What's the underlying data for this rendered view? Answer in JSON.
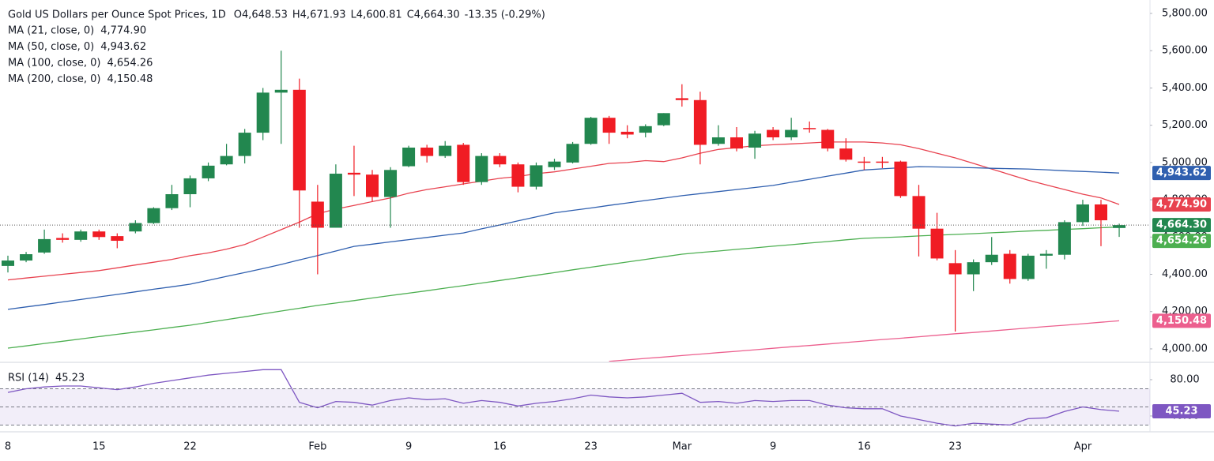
{
  "chart_data": [
    {
      "type": "candlestick",
      "title": "Gold US Dollars per Ounce Spot Prices, 1D",
      "ohlc_labels": [
        "O4,648.53",
        "H4,671.93",
        "L4,600.81",
        "C4,664.30",
        "-13.35 (-0.29%)"
      ],
      "categories": [
        "8",
        null,
        null,
        null,
        null,
        "15",
        null,
        null,
        null,
        null,
        "22",
        null,
        null,
        null,
        null,
        null,
        null,
        "Feb",
        null,
        null,
        null,
        null,
        "9",
        null,
        null,
        null,
        null,
        "16",
        null,
        null,
        null,
        null,
        "23",
        null,
        null,
        null,
        null,
        "Mar",
        null,
        null,
        null,
        null,
        "9",
        null,
        null,
        null,
        null,
        "16",
        null,
        null,
        null,
        null,
        "23",
        null,
        null,
        null,
        null,
        null,
        null,
        "Apr",
        null,
        null
      ],
      "open": [
        4445,
        4474,
        4517,
        4595,
        4585,
        4630,
        4605,
        4630,
        4675,
        4755,
        4830,
        4915,
        4990,
        5035,
        5160,
        5375,
        5390,
        4790,
        4650,
        4945,
        4935,
        4815,
        4980,
        5080,
        5035,
        5095,
        4895,
        5035,
        4990,
        4870,
        4975,
        5000,
        5100,
        5240,
        5165,
        5160,
        5200,
        5345,
        5335,
        5100,
        5135,
        5080,
        5175,
        5135,
        5185,
        5175,
        5075,
        5005,
        5005,
        5005,
        4820,
        4645,
        4460,
        4400,
        4465,
        4510,
        4375,
        4500,
        4505,
        4680,
        4775,
        4648.53
      ],
      "high": [
        4500,
        4520,
        4640,
        4620,
        4640,
        4640,
        4620,
        4690,
        4760,
        4880,
        4930,
        5000,
        5100,
        5180,
        5400,
        5600,
        5450,
        4880,
        4990,
        5090,
        4960,
        4975,
        5090,
        5095,
        5115,
        5105,
        5050,
        5050,
        5000,
        5000,
        5020,
        5110,
        5245,
        5250,
        5200,
        5205,
        5265,
        5420,
        5380,
        5200,
        5190,
        5170,
        5190,
        5240,
        5220,
        5180,
        5130,
        5030,
        5030,
        5010,
        4880,
        4730,
        4530,
        4480,
        4600,
        4530,
        4510,
        4530,
        4690,
        4800,
        4800,
        4671.93
      ],
      "low": [
        4410,
        4465,
        4510,
        4570,
        4575,
        4585,
        4540,
        4620,
        4670,
        4745,
        4760,
        4900,
        4985,
        4995,
        5120,
        5100,
        4650,
        4400,
        4650,
        4820,
        4790,
        4650,
        4975,
        5000,
        5025,
        4880,
        4880,
        4975,
        4840,
        4855,
        4960,
        4995,
        5095,
        5100,
        5130,
        5135,
        5195,
        5300,
        4990,
        5090,
        5060,
        5020,
        5120,
        5120,
        5160,
        5060,
        5005,
        4960,
        4970,
        4810,
        4496,
        4475,
        4093,
        4310,
        4450,
        4350,
        4365,
        4430,
        4480,
        4660,
        4551,
        4600.81
      ],
      "close": [
        4474,
        4508,
        4589,
        4585,
        4630,
        4600,
        4580,
        4675,
        4755,
        4830,
        4915,
        4983,
        5035,
        5160,
        5375,
        5390,
        4850,
        4650,
        4940,
        4935,
        4815,
        4960,
        5080,
        5035,
        5090,
        4895,
        5035,
        4990,
        4870,
        4985,
        5005,
        5100,
        5240,
        5160,
        5150,
        5195,
        5265,
        5335,
        5095,
        5135,
        5075,
        5155,
        5135,
        5175,
        5180,
        5075,
        5015,
        5000,
        5000,
        4820,
        4645,
        4485,
        4400,
        4465,
        4505,
        4375,
        4500,
        4510,
        4680,
        4775,
        4690,
        4664.3
      ],
      "up_color": "#22874f",
      "down_color": "#f01c24",
      "last_label": "4,664.30",
      "series": [
        {
          "name": "MA (21, close, 0)",
          "color": "#e8424f",
          "value_label": "4,774.90",
          "values": [
            4370,
            4380,
            4390,
            4400,
            4410,
            4420,
            4435,
            4450,
            4465,
            4480,
            4500,
            4515,
            4535,
            4560,
            4600,
            4640,
            4680,
            4725,
            4750,
            4770,
            4790,
            4810,
            4835,
            4855,
            4870,
            4885,
            4900,
            4915,
            4925,
            4940,
            4950,
            4965,
            4980,
            4995,
            5000,
            5010,
            5005,
            5025,
            5050,
            5070,
            5080,
            5090,
            5095,
            5100,
            5105,
            5110,
            5110,
            5110,
            5105,
            5095,
            5075,
            5050,
            5025,
            4995,
            4965,
            4935,
            4905,
            4880,
            4855,
            4830,
            4810,
            4774.9
          ]
        },
        {
          "name": "MA (50, close, 0)",
          "color": "#2f5faf",
          "value_label": "4,943.62",
          "values": [
            4212,
            4225,
            4238,
            4252,
            4265,
            4279,
            4292,
            4306,
            4320,
            4333,
            4347,
            4368,
            4389,
            4410,
            4431,
            4453,
            4477,
            4501,
            4525,
            4550,
            4562,
            4574,
            4586,
            4598,
            4610,
            4622,
            4644,
            4665,
            4687,
            4708,
            4730,
            4743,
            4756,
            4770,
            4783,
            4796,
            4809,
            4822,
            4833,
            4844,
            4855,
            4866,
            4877,
            4894,
            4910,
            4927,
            4943,
            4960,
            4966,
            4972,
            4978,
            4976,
            4974,
            4972,
            4969,
            4967,
            4965,
            4961,
            4956,
            4952,
            4948,
            4943.62
          ]
        },
        {
          "name": "MA (100, close, 0)",
          "color": "#4caf50",
          "value_label": "4,654.26",
          "values": [
            4004,
            4016,
            4029,
            4041,
            4053,
            4066,
            4078,
            4090,
            4102,
            4115,
            4127,
            4142,
            4157,
            4172,
            4188,
            4203,
            4218,
            4233,
            4246,
            4259,
            4273,
            4286,
            4299,
            4312,
            4326,
            4339,
            4353,
            4367,
            4381,
            4395,
            4409,
            4424,
            4438,
            4452,
            4466,
            4480,
            4494,
            4508,
            4517,
            4525,
            4534,
            4542,
            4551,
            4559,
            4568,
            4576,
            4585,
            4593,
            4597,
            4601,
            4606,
            4610,
            4614,
            4618,
            4623,
            4627,
            4632,
            4636,
            4641,
            4645,
            4650,
            4654.26
          ]
        },
        {
          "name": "MA (200, close, 0)",
          "color": "#ec5f8e",
          "value_label": "4,150.48",
          "values": [
            null,
            null,
            null,
            null,
            null,
            null,
            null,
            null,
            null,
            null,
            null,
            null,
            null,
            null,
            null,
            null,
            null,
            null,
            null,
            null,
            null,
            null,
            null,
            null,
            null,
            null,
            null,
            null,
            null,
            null,
            null,
            null,
            null,
            3933,
            3941,
            3949,
            3956,
            3964,
            3972,
            3980,
            3987,
            3995,
            4003,
            4011,
            4018,
            4026,
            4034,
            4042,
            4050,
            4057,
            4065,
            4073,
            4081,
            4088,
            4096,
            4104,
            4112,
            4120,
            4127,
            4135,
            4143,
            4150.48
          ]
        }
      ],
      "ylim": [
        3932,
        5872
      ],
      "yticks": [
        {
          "value": 4000,
          "label": "4,000.00"
        },
        {
          "value": 4200,
          "label": "4,200.00"
        },
        {
          "value": 4400,
          "label": "4,400.00"
        },
        {
          "value": 4600,
          "label": "4,600.00"
        },
        {
          "value": 4800,
          "label": "4,800.00"
        },
        {
          "value": 5000,
          "label": "5,000.00"
        },
        {
          "value": 5200,
          "label": "5,200.00"
        },
        {
          "value": 5400,
          "label": "5,400.00"
        },
        {
          "value": 5600,
          "label": "5,600.00"
        },
        {
          "value": 5800,
          "label": "5,800.00"
        }
      ],
      "grid": false
    },
    {
      "type": "line",
      "name": "RSI (14)",
      "color": "#7e57c2",
      "value_label": "45.23",
      "values": [
        66,
        70,
        72,
        73,
        73,
        71,
        69,
        72,
        76,
        79,
        82,
        85,
        87,
        89,
        91,
        91,
        55,
        49,
        56,
        55,
        52,
        57,
        60,
        58,
        59,
        54,
        57,
        55,
        51,
        54,
        56,
        59,
        63,
        61,
        60,
        61,
        63,
        65,
        55,
        56,
        54,
        57,
        56,
        57,
        57,
        52,
        49,
        48,
        48,
        40,
        36,
        32,
        29,
        32,
        31,
        30,
        37,
        38,
        45,
        50,
        47,
        45.23
      ],
      "ylim": [
        24.3,
        96.5
      ],
      "yticks": [
        {
          "value": 80,
          "label": "80.00"
        },
        {
          "value": 40,
          "label": "40.00"
        }
      ],
      "bands": [
        70,
        50,
        30
      ]
    }
  ]
}
